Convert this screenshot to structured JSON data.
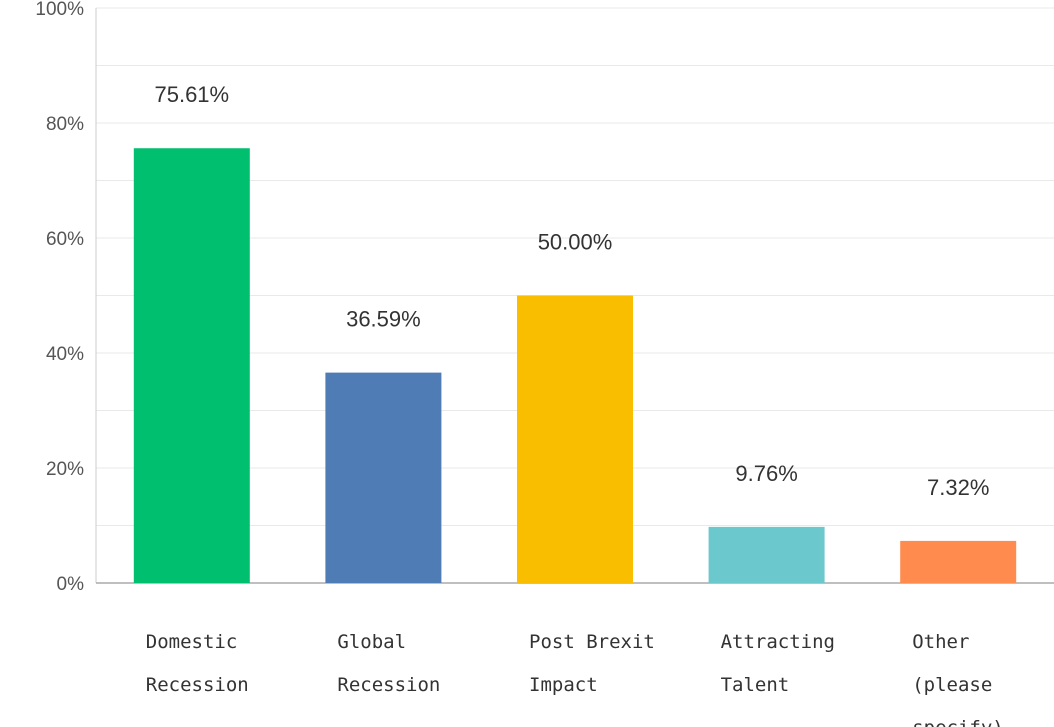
{
  "chart_data": {
    "type": "bar",
    "categories": [
      [
        "Domestic",
        "Recession"
      ],
      [
        "Global",
        "Recession"
      ],
      [
        "Post Brexit",
        "Impact"
      ],
      [
        "Attracting",
        "Talent"
      ],
      [
        "Other",
        "(please",
        "specify)"
      ]
    ],
    "values": [
      75.61,
      36.59,
      50.0,
      9.76,
      7.32
    ],
    "value_labels": [
      "75.61%",
      "36.59%",
      "50.00%",
      "9.76%",
      "7.32%"
    ],
    "colors": [
      "#00bf6f",
      "#507cb6",
      "#f9be00",
      "#6bc8cd",
      "#ff8b4f"
    ],
    "yticks": [
      {
        "value": 0,
        "label": "0%"
      },
      {
        "value": 20,
        "label": "20%"
      },
      {
        "value": 40,
        "label": "40%"
      },
      {
        "value": 60,
        "label": "60%"
      },
      {
        "value": 80,
        "label": "80%"
      },
      {
        "value": 100,
        "label": "100%"
      }
    ],
    "ylim": [
      0,
      100
    ],
    "grid": true,
    "legend": false
  }
}
